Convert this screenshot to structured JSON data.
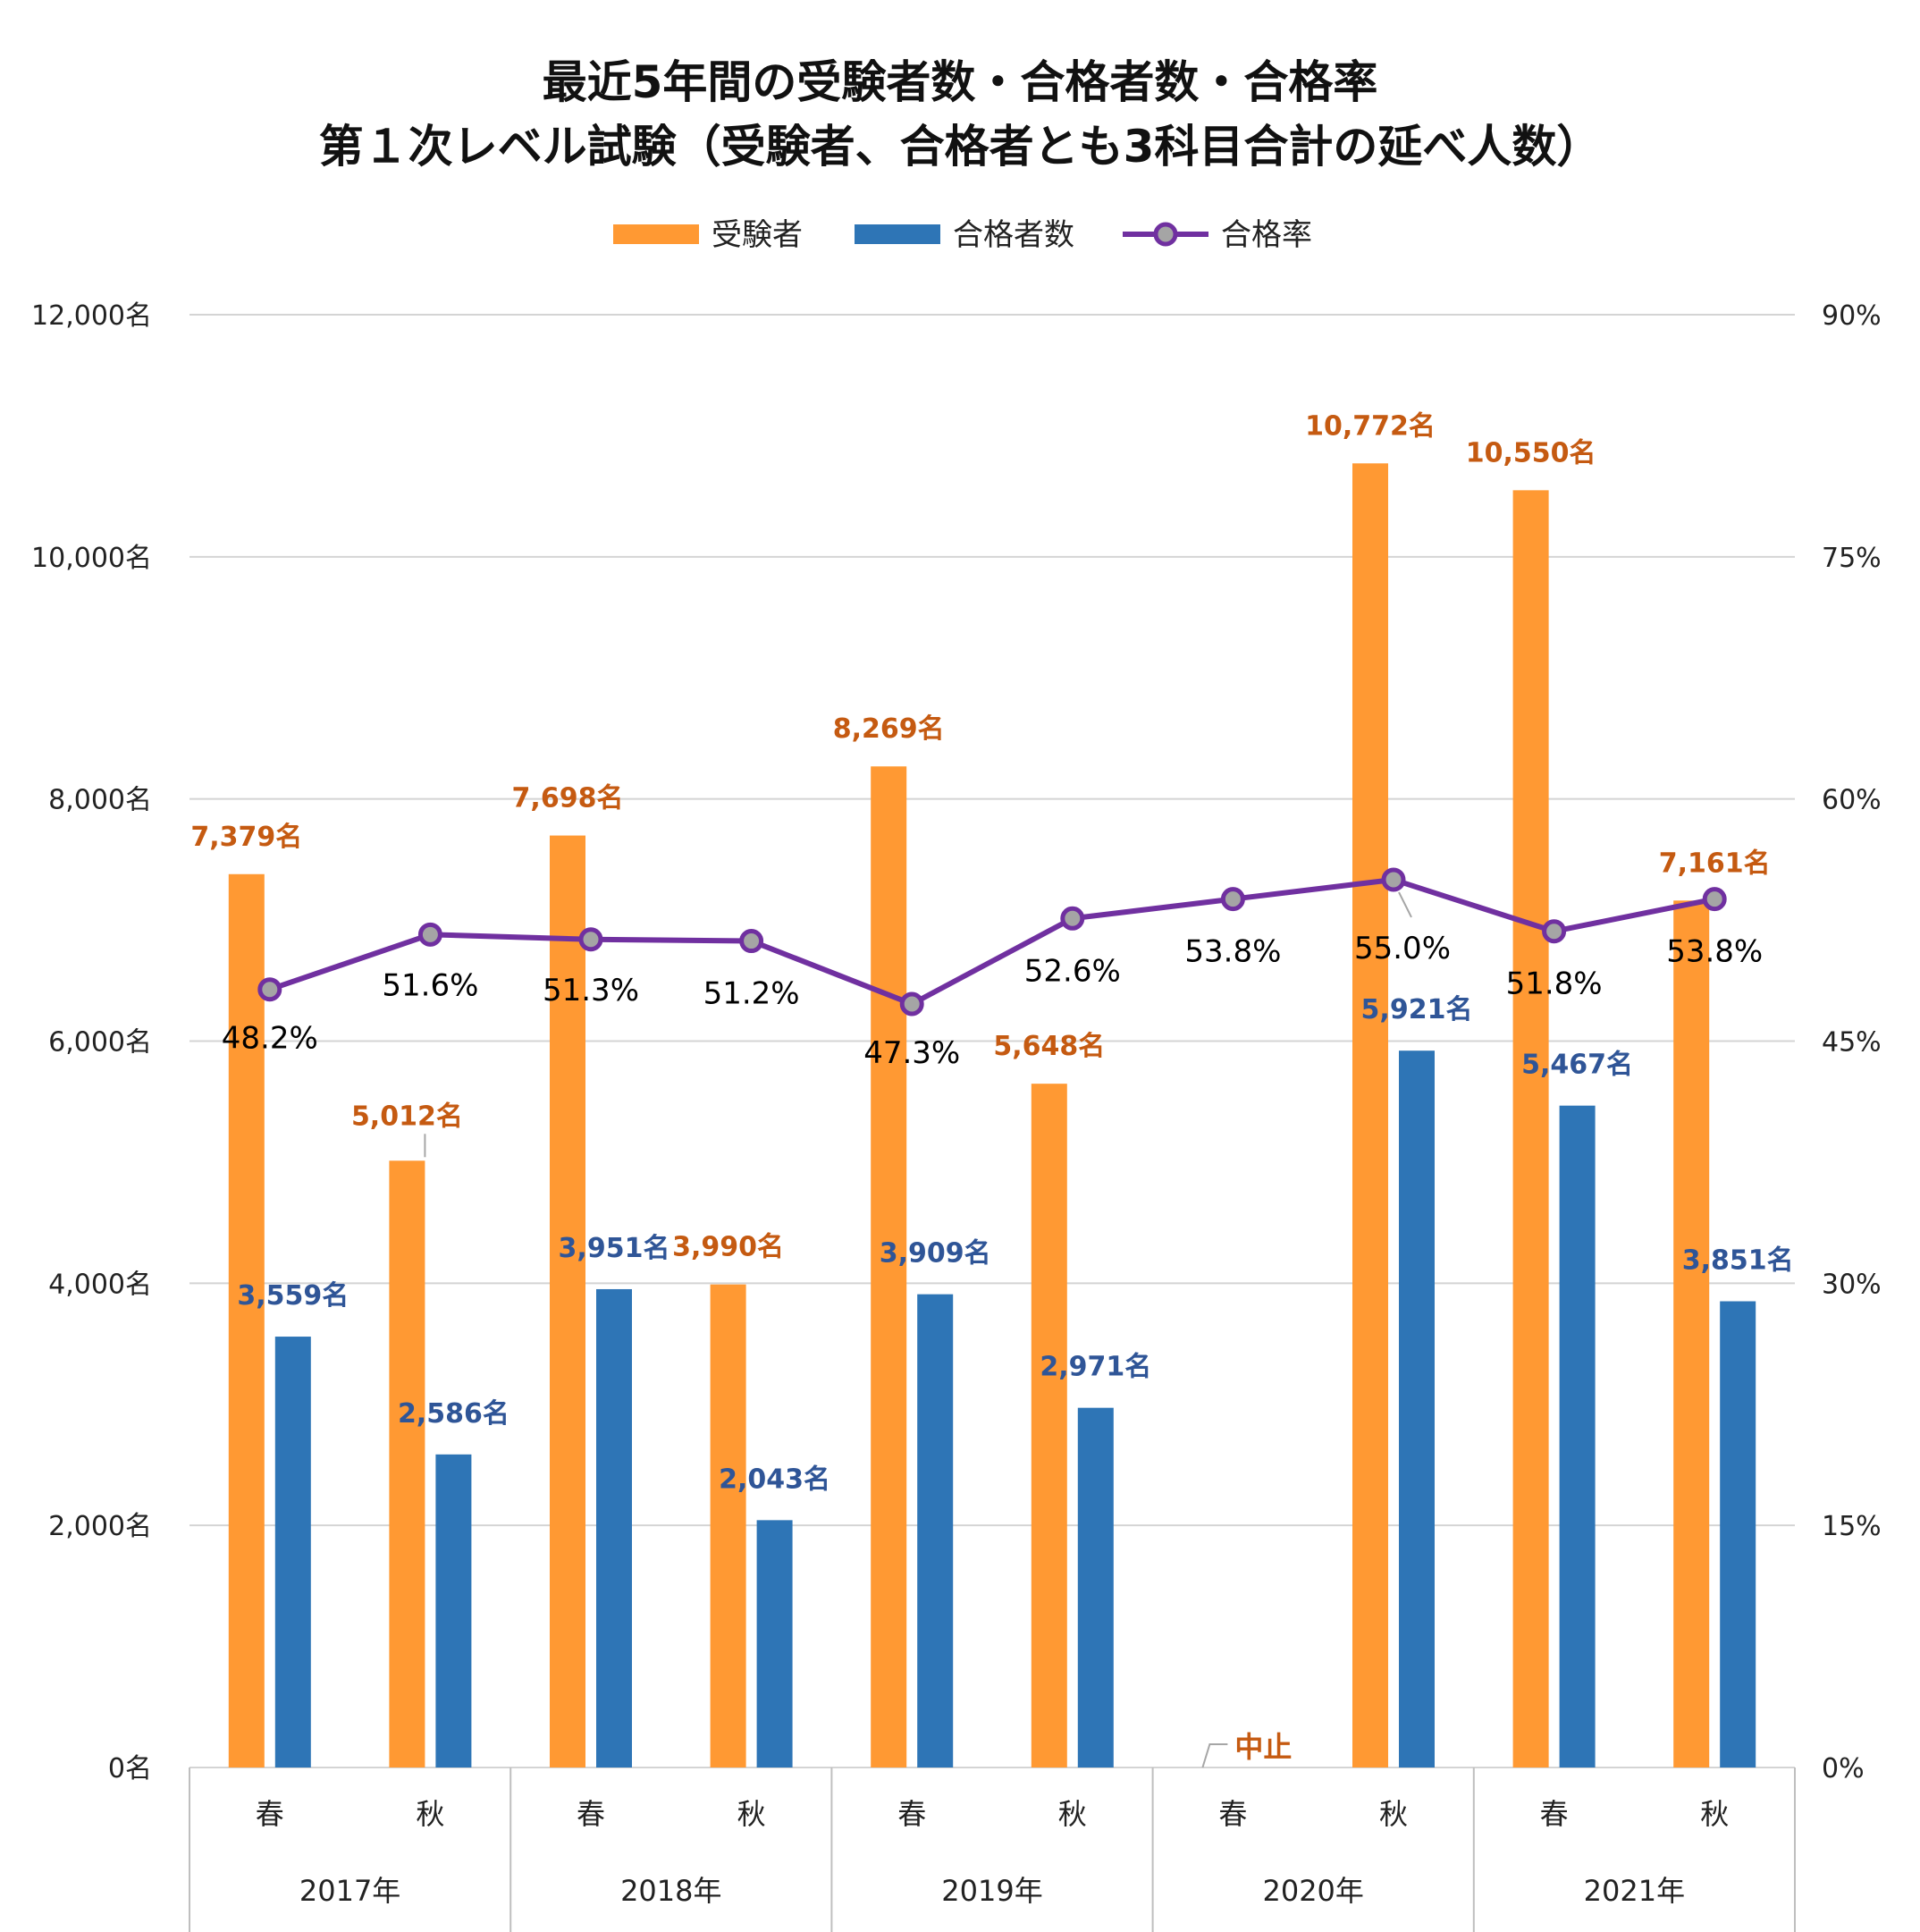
{
  "chart_data": {
    "type": "bar",
    "title": "最近5年間の受験者数・合格者数・合格率",
    "subtitle": "第１次レベル試験（受験者、合格者とも3科目合計の延べ人数）",
    "years": [
      "2017年",
      "2018年",
      "2019年",
      "2020年",
      "2021年"
    ],
    "seasons": [
      "春",
      "秋",
      "春",
      "秋",
      "春",
      "秋",
      "春",
      "秋",
      "春",
      "秋"
    ],
    "categories": [
      "2017年 春",
      "2017年 秋",
      "2018年 春",
      "2018年 秋",
      "2019年 春",
      "2019年 秋",
      "2020年 春",
      "2020年 秋",
      "2021年 春",
      "2021年 秋"
    ],
    "series": [
      {
        "name": "受験者",
        "type": "bar",
        "axis": "left",
        "color": "#FF9933",
        "values": [
          7379,
          5012,
          7698,
          3990,
          8269,
          5648,
          null,
          10772,
          10550,
          7161
        ],
        "labels": [
          "7,379名",
          "5,012名",
          "7,698名",
          "3,990名",
          "8,269名",
          "5,648名",
          "",
          "10,772名",
          "10,550名",
          "7,161名"
        ]
      },
      {
        "name": "合格者数",
        "type": "bar",
        "axis": "left",
        "color": "#2E75B6",
        "values": [
          3559,
          2586,
          3951,
          2043,
          3909,
          2971,
          null,
          5921,
          5467,
          3851
        ],
        "labels": [
          "3,559名",
          "2,586名",
          "3,951名",
          "2,043名",
          "3,909名",
          "2,971名",
          "",
          "5,921名",
          "5,467名",
          "3,851名"
        ]
      },
      {
        "name": "合格率",
        "type": "line",
        "axis": "right",
        "color": "#7030A0",
        "marker_color": "#A5A5A5",
        "values": [
          48.2,
          51.6,
          51.3,
          51.2,
          47.3,
          52.6,
          53.8,
          55.0,
          51.8,
          53.8
        ],
        "labels": [
          "48.2%",
          "51.6%",
          "51.3%",
          "51.2%",
          "47.3%",
          "52.6%",
          "53.8%",
          "55.0%",
          "51.8%",
          "53.8%"
        ]
      }
    ],
    "cancelled_label": "中止",
    "cancelled_index": 6,
    "y_left": {
      "min": 0,
      "max": 12000,
      "ticks": [
        "0名",
        "2,000名",
        "4,000名",
        "6,000名",
        "8,000名",
        "10,000名",
        "12,000名"
      ]
    },
    "y_right": {
      "min": 0,
      "max": 90,
      "ticks": [
        "0%",
        "15%",
        "30%",
        "45%",
        "60%",
        "75%",
        "90%"
      ]
    },
    "legend": {
      "position": "top"
    },
    "grid": true,
    "label_colors": {
      "applicants": "#C55A11",
      "passers": "#2F5597",
      "rate": "#000000"
    }
  }
}
